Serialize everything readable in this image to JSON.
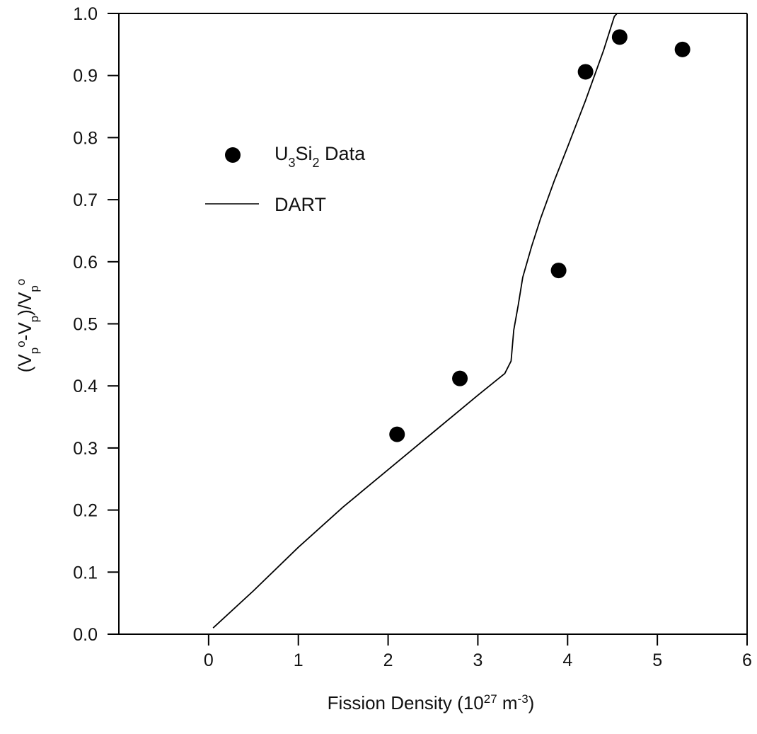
{
  "chart_data": {
    "type": "scatter",
    "title": "",
    "xlabel": {
      "main": "Fission Density (10",
      "sup1": "27",
      "mid": " m",
      "sup2": "-3",
      "end": ")"
    },
    "ylabel": {
      "p1": "(V",
      "sub1": "p",
      "sup1": "o",
      "p2": "-V",
      "sub2": "p",
      "p3": ")/V",
      "sub3": "p",
      "sup3": "o"
    },
    "xlim": [
      -1,
      6
    ],
    "ylim": [
      0.0,
      1.0
    ],
    "xticks": [
      0,
      1,
      2,
      3,
      4,
      5,
      6
    ],
    "xtick_labels": [
      "0",
      "1",
      "2",
      "3",
      "4",
      "5",
      "6"
    ],
    "yticks": [
      0.0,
      0.1,
      0.2,
      0.3,
      0.4,
      0.5,
      0.6,
      0.7,
      0.8,
      0.9,
      1.0
    ],
    "ytick_labels": [
      "0.0",
      "0.1",
      "0.2",
      "0.3",
      "0.4",
      "0.5",
      "0.6",
      "0.7",
      "0.8",
      "0.9",
      "1.0"
    ],
    "grid": false,
    "legend_position": "upper-left",
    "series": [
      {
        "kind": "scatter",
        "legend": {
          "p1": "U",
          "sub1": "3",
          "p2": "Si",
          "sub2": "2",
          "p3": " Data"
        },
        "color": "#000000",
        "x": [
          2.1,
          2.8,
          3.9,
          4.2,
          4.58,
          5.28
        ],
        "y": [
          0.322,
          0.412,
          0.586,
          0.906,
          0.962,
          0.942
        ]
      },
      {
        "kind": "line",
        "name": "DART",
        "color": "#000000",
        "x": [
          0.05,
          0.5,
          1.0,
          1.5,
          2.0,
          2.5,
          3.0,
          3.3,
          3.37,
          3.4,
          3.45,
          3.5,
          3.6,
          3.7,
          3.85,
          4.0,
          4.2,
          4.4,
          4.52,
          4.55
        ],
        "y": [
          0.01,
          0.07,
          0.14,
          0.205,
          0.265,
          0.325,
          0.385,
          0.42,
          0.44,
          0.49,
          0.53,
          0.575,
          0.625,
          0.67,
          0.73,
          0.785,
          0.86,
          0.94,
          0.995,
          1.0
        ]
      }
    ]
  }
}
